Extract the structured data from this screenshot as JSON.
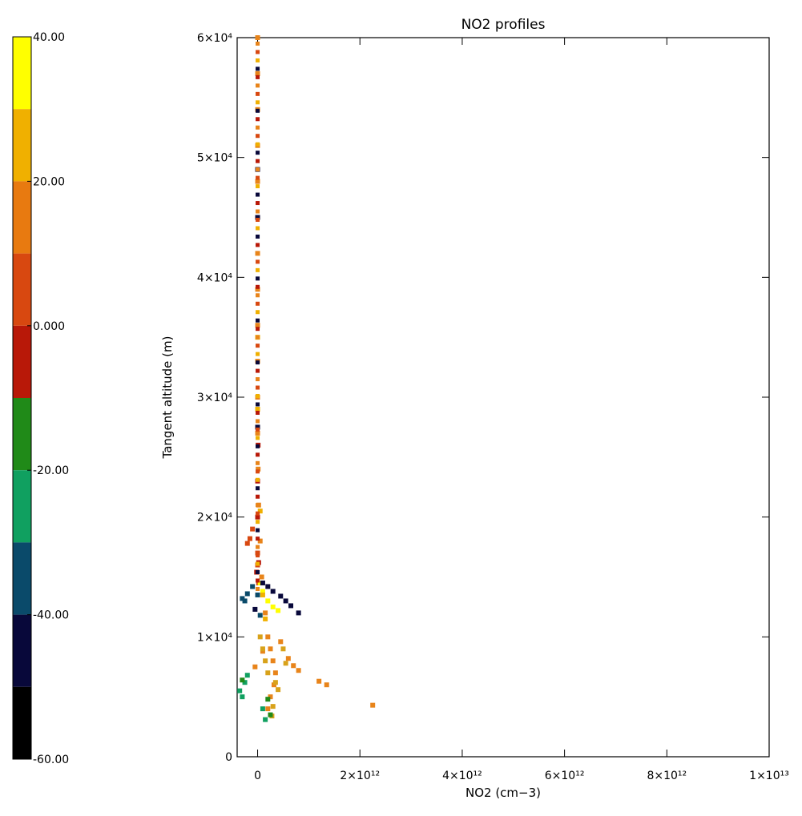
{
  "chart_data": {
    "type": "scatter",
    "title": "NO2 profiles",
    "xlabel": "NO2 (cm−3)",
    "ylabel": "Tangent altitude (m)",
    "xlim": [
      -400000000000.0,
      10000000000000.0
    ],
    "ylim": [
      0,
      60000
    ],
    "x_ticks": [
      {
        "value": 0,
        "label": "0"
      },
      {
        "value": 2000000000000.0,
        "label": "2×10¹²"
      },
      {
        "value": 4000000000000.0,
        "label": "4×10¹²"
      },
      {
        "value": 6000000000000.0,
        "label": "6×10¹²"
      },
      {
        "value": 8000000000000.0,
        "label": "8×10¹²"
      },
      {
        "value": 10000000000000.0,
        "label": "1×10¹³"
      }
    ],
    "y_ticks": [
      {
        "value": 0,
        "label": "0"
      },
      {
        "value": 10000,
        "label": "1×10⁴"
      },
      {
        "value": 20000,
        "label": "2×10⁴"
      },
      {
        "value": 30000,
        "label": "3×10⁴"
      },
      {
        "value": 40000,
        "label": "4×10⁴"
      },
      {
        "value": 50000,
        "label": "5×10⁴"
      },
      {
        "value": 60000,
        "label": "6×10⁴"
      }
    ],
    "grid": false,
    "colorbar": {
      "placement": "left",
      "range": [
        -60,
        40
      ],
      "labels": [
        {
          "value": 40,
          "label": "40.00"
        },
        {
          "value": 20,
          "label": "20.00"
        },
        {
          "value": 0,
          "label": "0.000"
        },
        {
          "value": -20,
          "label": "-20.00"
        },
        {
          "value": -40,
          "label": "-40.00"
        },
        {
          "value": -60,
          "label": "-60.00"
        }
      ],
      "bands": [
        {
          "from": 30,
          "to": 40,
          "color": "#ffff00"
        },
        {
          "from": 20,
          "to": 30,
          "color": "#f0b000"
        },
        {
          "from": 10,
          "to": 20,
          "color": "#e87a10"
        },
        {
          "from": 0,
          "to": 10,
          "color": "#d84810"
        },
        {
          "from": -10,
          "to": 0,
          "color": "#b81808"
        },
        {
          "from": -20,
          "to": -10,
          "color": "#208a18"
        },
        {
          "from": -30,
          "to": -20,
          "color": "#10a060"
        },
        {
          "from": -40,
          "to": -30,
          "color": "#0a4a6a"
        },
        {
          "from": -50,
          "to": -40,
          "color": "#08083a"
        },
        {
          "from": -60,
          "to": -50,
          "color": "#000000"
        }
      ]
    },
    "series": [
      {
        "color": "#e8841a",
        "points": [
          [
            0,
            60000
          ],
          [
            0,
            57000
          ],
          [
            0,
            54000
          ],
          [
            0,
            51000
          ],
          [
            0,
            48000
          ],
          [
            0,
            45000
          ],
          [
            0,
            42000
          ],
          [
            0,
            39000
          ],
          [
            0,
            36000
          ],
          [
            0,
            33000
          ],
          [
            0,
            30000
          ],
          [
            0,
            27000
          ],
          [
            10000000000.0,
            24000
          ],
          [
            20000000000.0,
            21000
          ],
          [
            50000000000.0,
            18000
          ],
          [
            80000000000.0,
            15000
          ],
          [
            150000000000.0,
            12000
          ],
          [
            200000000000.0,
            10000
          ],
          [
            250000000000.0,
            9000
          ],
          [
            300000000000.0,
            8000
          ],
          [
            350000000000.0,
            7000
          ],
          [
            320000000000.0,
            6000
          ],
          [
            250000000000.0,
            5000
          ],
          [
            200000000000.0,
            4000
          ],
          [
            -50000000000.0,
            7500
          ],
          [
            100000000000.0,
            8800
          ],
          [
            450000000000.0,
            9600
          ],
          [
            600000000000.0,
            8200
          ],
          [
            700000000000.0,
            7600
          ],
          [
            800000000000.0,
            7200
          ],
          [
            1200000000000.0,
            6300
          ],
          [
            1350000000000.0,
            6000
          ],
          [
            2250000000000.0,
            4300
          ]
        ]
      },
      {
        "color": "#d8a21a",
        "points": [
          [
            50000000000.0,
            10000
          ],
          [
            100000000000.0,
            9000
          ],
          [
            150000000000.0,
            8000
          ],
          [
            200000000000.0,
            7000
          ],
          [
            350000000000.0,
            6200
          ],
          [
            400000000000.0,
            5600
          ],
          [
            300000000000.0,
            4200
          ],
          [
            280000000000.0,
            3400
          ],
          [
            500000000000.0,
            9000
          ],
          [
            550000000000.0,
            7800
          ]
        ]
      },
      {
        "color": "#d84810",
        "points": [
          [
            -100000000000.0,
            19000
          ],
          [
            -150000000000.0,
            18200
          ],
          [
            -200000000000.0,
            17800
          ],
          [
            0,
            17000
          ],
          [
            0,
            16000
          ],
          [
            20000000000.0,
            14500
          ]
        ]
      },
      {
        "color": "#b81808",
        "points": [
          [
            0,
            20000
          ],
          [
            0,
            23000
          ],
          [
            10000000000.0,
            26000
          ],
          [
            20000000000.0,
            16200
          ],
          [
            -20000000000.0,
            15400
          ]
        ]
      },
      {
        "color": "#ffff00",
        "points": [
          [
            50000000000.0,
            14500
          ],
          [
            100000000000.0,
            13800
          ],
          [
            200000000000.0,
            13000
          ],
          [
            300000000000.0,
            12500
          ],
          [
            400000000000.0,
            12200
          ]
        ]
      },
      {
        "color": "#f0b000",
        "points": [
          [
            0,
            35000
          ],
          [
            0,
            29000
          ],
          [
            50000000000.0,
            20500
          ],
          [
            100000000000.0,
            13500
          ],
          [
            150000000000.0,
            11500
          ]
        ]
      },
      {
        "color": "#08083a",
        "points": [
          [
            0,
            49000
          ],
          [
            0,
            45000
          ],
          [
            0,
            27500
          ],
          [
            100000000000.0,
            14500
          ],
          [
            200000000000.0,
            14200
          ],
          [
            300000000000.0,
            13800
          ],
          [
            450000000000.0,
            13400
          ],
          [
            550000000000.0,
            13000
          ],
          [
            650000000000.0,
            12600
          ],
          [
            800000000000.0,
            12000
          ],
          [
            -50000000000.0,
            12300
          ]
        ]
      },
      {
        "color": "#0a4a6a",
        "points": [
          [
            -300000000000.0,
            13200
          ],
          [
            -250000000000.0,
            13000
          ],
          [
            -200000000000.0,
            13600
          ],
          [
            -100000000000.0,
            14200
          ],
          [
            0,
            13500
          ],
          [
            50000000000.0,
            11800
          ]
        ]
      },
      {
        "color": "#10a060",
        "points": [
          [
            -350000000000.0,
            5500
          ],
          [
            -300000000000.0,
            5000
          ],
          [
            -250000000000.0,
            6200
          ],
          [
            -200000000000.0,
            6800
          ],
          [
            100000000000.0,
            4000
          ],
          [
            150000000000.0,
            3100
          ]
        ]
      },
      {
        "color": "#208a18",
        "points": [
          [
            -300000000000.0,
            6400
          ],
          [
            200000000000.0,
            4800
          ],
          [
            250000000000.0,
            3500
          ]
        ]
      }
    ]
  }
}
